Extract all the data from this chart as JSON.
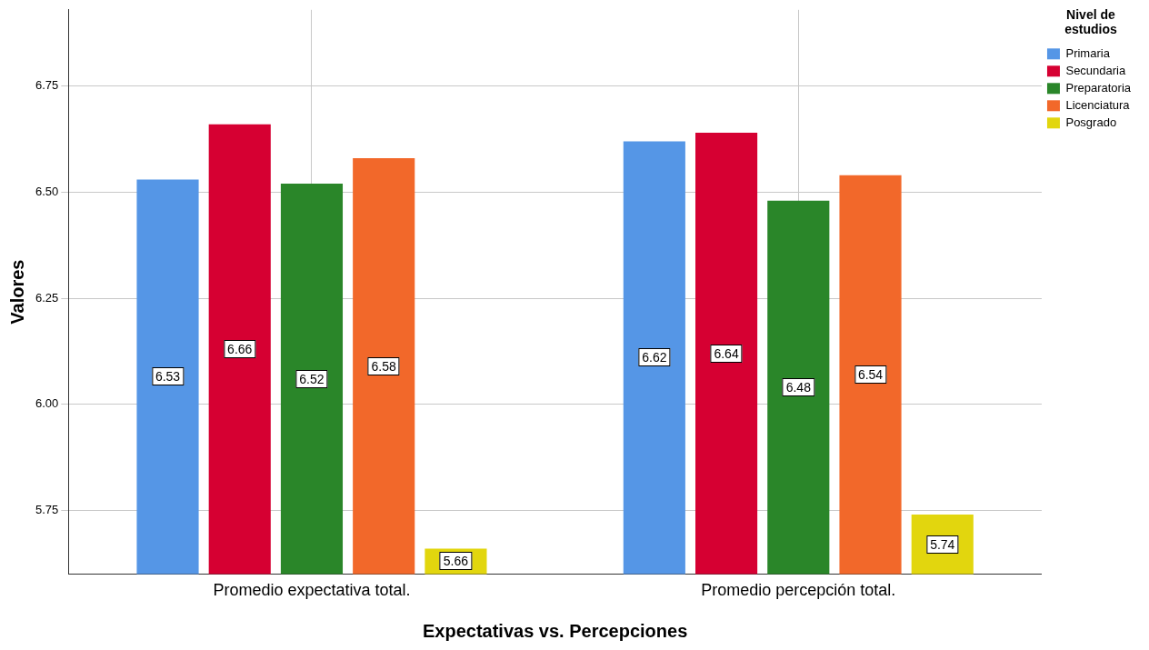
{
  "chart_data": {
    "type": "bar",
    "xlabel": "Expectativas vs. Percepciones",
    "ylabel": "Valores",
    "legend_title": "Nivel de estudios",
    "categories": [
      "Promedio expectativa total.",
      "Promedio percepción total."
    ],
    "series": [
      {
        "name": "Primaria",
        "color": "#5596e6",
        "values": [
          6.53,
          6.62
        ]
      },
      {
        "name": "Secundaria",
        "color": "#d60032",
        "values": [
          6.66,
          6.64
        ]
      },
      {
        "name": "Preparatoria",
        "color": "#2a8629",
        "values": [
          6.52,
          6.48
        ]
      },
      {
        "name": "Licenciatura",
        "color": "#f2682a",
        "values": [
          6.58,
          6.54
        ]
      },
      {
        "name": "Posgrado",
        "color": "#e2d60e",
        "values": [
          5.66,
          5.74
        ]
      }
    ],
    "ylim": [
      5.6,
      6.93
    ],
    "yticks": [
      5.75,
      {
        "value": 6,
        "label": "6.00"
      },
      6.25,
      {
        "value": 6.5,
        "label": "6.50"
      },
      6.75
    ],
    "grid": true,
    "legend": "top right",
    "data_labels": true
  }
}
